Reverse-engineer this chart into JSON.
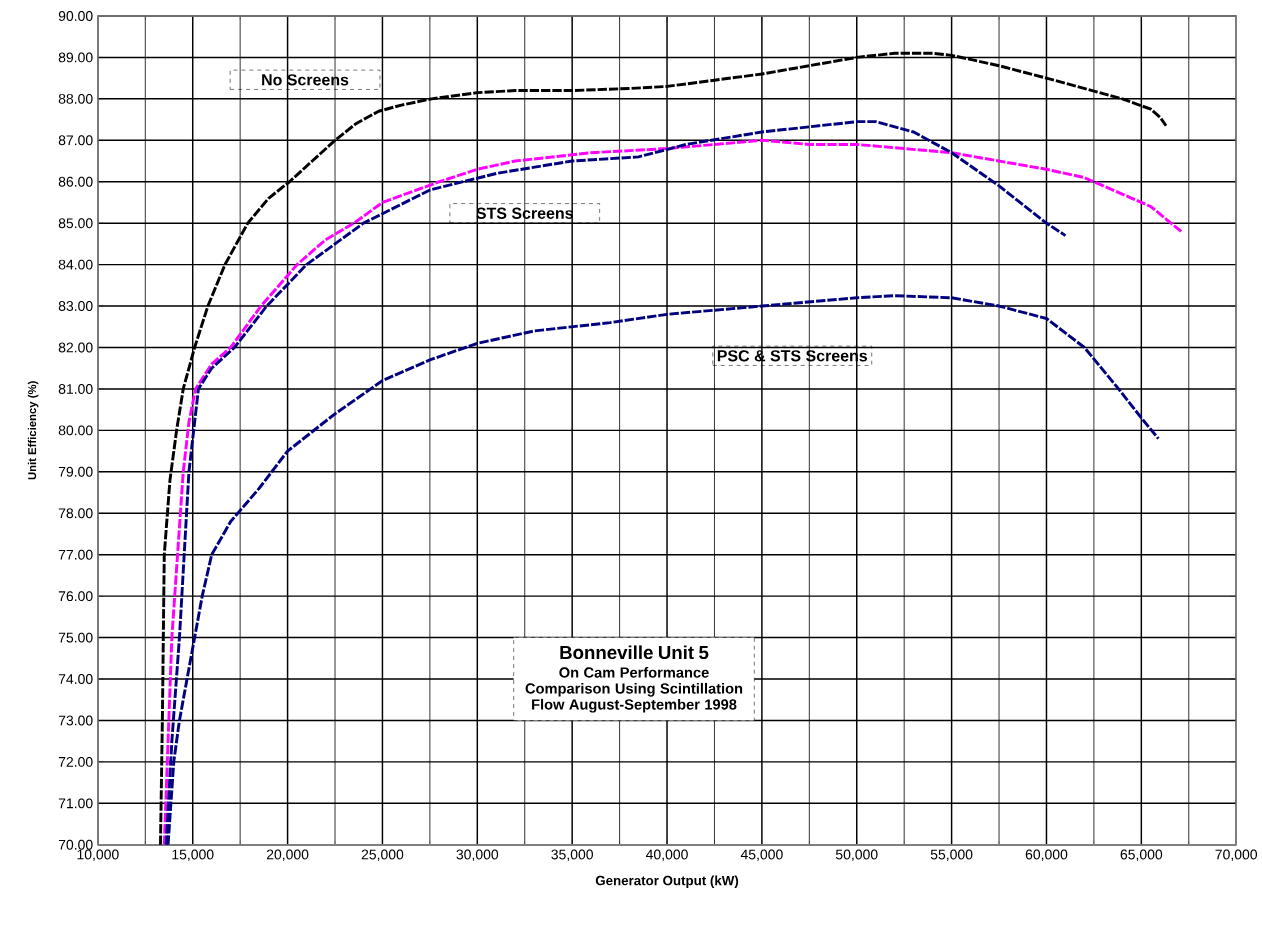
{
  "chart_data": {
    "type": "line",
    "title": "Bonneville Unit 5",
    "subtitle": "On Cam Performance Comparison Using Scintillation Flow August-September 1998",
    "xlabel": "Generator Output (kW)",
    "ylabel": "Unit Efficiency (%)",
    "xlim": [
      10000,
      70000
    ],
    "ylim": [
      70,
      90
    ],
    "xticks": [
      {
        "value": 10000,
        "label": "10,000"
      },
      {
        "value": 15000,
        "label": "15,000"
      },
      {
        "value": 20000,
        "label": "20,000"
      },
      {
        "value": 25000,
        "label": "25,000"
      },
      {
        "value": 30000,
        "label": "30,000"
      },
      {
        "value": 35000,
        "label": "35,000"
      },
      {
        "value": 40000,
        "label": "40,000"
      },
      {
        "value": 45000,
        "label": "45,000"
      },
      {
        "value": 50000,
        "label": "50,000"
      },
      {
        "value": 55000,
        "label": "55,000"
      },
      {
        "value": 60000,
        "label": "60,000"
      },
      {
        "value": 65000,
        "label": "65,000"
      },
      {
        "value": 70000,
        "label": "70,000"
      }
    ],
    "yticks": [
      {
        "value": 70,
        "label": "70.00"
      },
      {
        "value": 71,
        "label": "71.00"
      },
      {
        "value": 72,
        "label": "72.00"
      },
      {
        "value": 73,
        "label": "73.00"
      },
      {
        "value": 74,
        "label": "74.00"
      },
      {
        "value": 75,
        "label": "75.00"
      },
      {
        "value": 76,
        "label": "76.00"
      },
      {
        "value": 77,
        "label": "77.00"
      },
      {
        "value": 78,
        "label": "78.00"
      },
      {
        "value": 79,
        "label": "79.00"
      },
      {
        "value": 80,
        "label": "80.00"
      },
      {
        "value": 81,
        "label": "81.00"
      },
      {
        "value": 82,
        "label": "82.00"
      },
      {
        "value": 83,
        "label": "83.00"
      },
      {
        "value": 84,
        "label": "84.00"
      },
      {
        "value": 85,
        "label": "85.00"
      },
      {
        "value": 86,
        "label": "86.00"
      },
      {
        "value": 87,
        "label": "87.00"
      },
      {
        "value": 88,
        "label": "88.00"
      },
      {
        "value": 89,
        "label": "89.00"
      },
      {
        "value": 90,
        "label": "90.00"
      }
    ],
    "grid": true,
    "marker": "none",
    "line_style": "dashed",
    "series": [
      {
        "color": "#000000",
        "x": [
          13300,
          13400,
          13500,
          13800,
          14150,
          14500,
          15100,
          15800,
          16700,
          17900,
          19000,
          20100,
          21300,
          22500,
          23600,
          24800,
          26000,
          27600,
          30000,
          32000,
          35000,
          38000,
          40000,
          42500,
          45000,
          47500,
          50000,
          52000,
          53000,
          54000,
          55000,
          57500,
          60000,
          62000,
          64000,
          65500,
          66000,
          66300
        ],
        "values": [
          70,
          73,
          77,
          78.8,
          80,
          81,
          82,
          83,
          84,
          85,
          85.6,
          86,
          86.5,
          87,
          87.4,
          87.7,
          87.85,
          88,
          88.15,
          88.2,
          88.2,
          88.25,
          88.3,
          88.45,
          88.6,
          88.8,
          89,
          89.1,
          89.1,
          89.1,
          89.05,
          88.8,
          88.5,
          88.25,
          88,
          87.75,
          87.55,
          87.35
        ]
      },
      {
        "color": "#ff00ff",
        "x": [
          13500,
          13700,
          13900,
          14200,
          14500,
          14800,
          15150,
          16000,
          17000,
          18600,
          20500,
          22000,
          23500,
          25000,
          28000,
          30000,
          32000,
          36000,
          40000,
          42500,
          45000,
          47500,
          50000,
          52500,
          55000,
          57500,
          60000,
          62000,
          63000,
          64500,
          65500,
          66300,
          67100
        ],
        "values": [
          70,
          72.5,
          75,
          77,
          79,
          80.2,
          81,
          81.6,
          82,
          83,
          84,
          84.6,
          85,
          85.5,
          86,
          86.3,
          86.5,
          86.7,
          86.8,
          86.9,
          87,
          86.9,
          86.9,
          86.8,
          86.7,
          86.5,
          86.3,
          86.1,
          85.9,
          85.6,
          85.4,
          85.1,
          84.8
        ]
      },
      {
        "color": "#000080",
        "x": [
          13600,
          13900,
          14300,
          14800,
          15300,
          16000,
          17200,
          18900,
          21000,
          24000,
          27500,
          31000,
          35000,
          38500,
          41000,
          45000,
          48000,
          50000,
          51000,
          53000,
          55000,
          57500,
          60000,
          61000
        ],
        "values": [
          70,
          72.5,
          75,
          79,
          81,
          81.5,
          82,
          83,
          84,
          85,
          85.8,
          86.2,
          86.5,
          86.6,
          86.9,
          87.2,
          87.35,
          87.45,
          87.45,
          87.2,
          86.7,
          85.9,
          85,
          84.7
        ]
      },
      {
        "color": "#000080",
        "x": [
          13700,
          14000,
          14300,
          14700,
          15100,
          15500,
          16000,
          17000,
          18500,
          20000,
          22500,
          25000,
          27500,
          30000,
          33000,
          37000,
          40000,
          45000,
          50000,
          52000,
          55000,
          57500,
          60000,
          62000,
          63800,
          65000,
          65900
        ],
        "values": [
          70,
          72,
          73,
          74,
          75,
          76,
          77,
          77.8,
          78.6,
          79.5,
          80.4,
          81.2,
          81.7,
          82.1,
          82.4,
          82.6,
          82.8,
          83,
          83.2,
          83.25,
          83.2,
          83,
          82.7,
          82,
          81,
          80.3,
          79.8
        ]
      }
    ],
    "annotations": [
      "No Screens",
      "STS Screens",
      "PSC & STS Screens"
    ]
  }
}
